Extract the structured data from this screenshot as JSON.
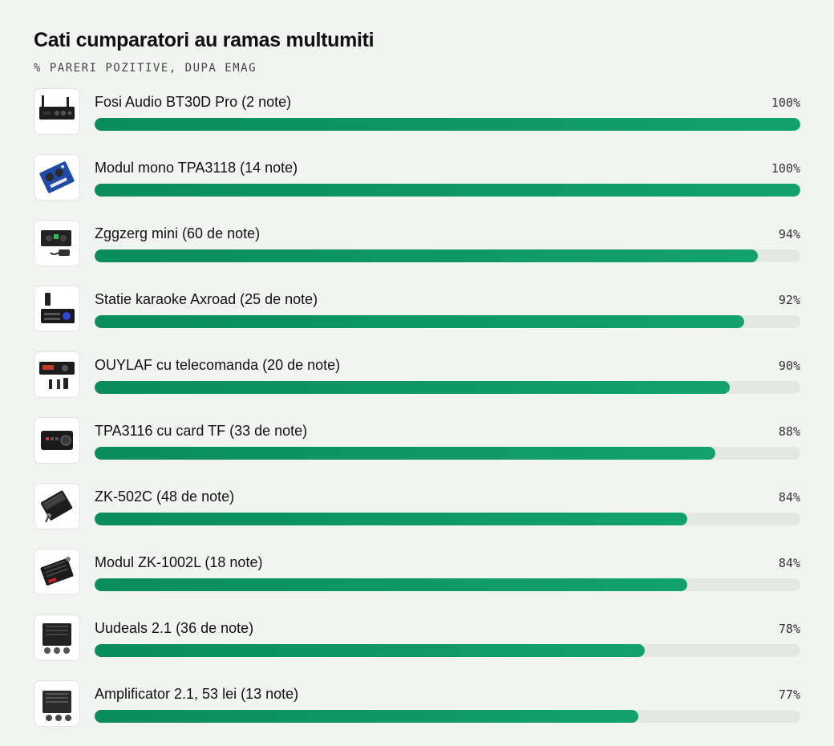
{
  "title": "Cati cumparatori au ramas multumiti",
  "subtitle": "% PARERI POZITIVE, DUPA EMAG",
  "chart_data": {
    "type": "bar",
    "orientation": "horizontal",
    "title": "Cati cumparatori au ramas multumiti",
    "subtitle": "% PARERI POZITIVE, DUPA EMAG",
    "xlim": [
      0,
      100
    ],
    "bar_color": "#0e9563",
    "track_color": "#e4e7e3",
    "value_suffix": "%",
    "items": [
      {
        "label": "Fosi Audio BT30D Pro (2 note)",
        "value": 100,
        "icon": "amplifier-black-box-icon"
      },
      {
        "label": "Modul mono TPA3118 (14 note)",
        "value": 100,
        "icon": "blue-circuit-board-icon"
      },
      {
        "label": "Zggzerg mini (60 de note)",
        "value": 94,
        "icon": "mini-amplifier-icon"
      },
      {
        "label": "Statie karaoke Axroad (25 de note)",
        "value": 92,
        "icon": "karaoke-amplifier-icon"
      },
      {
        "label": "OUYLAF cu telecomanda (20 de note)",
        "value": 90,
        "icon": "amplifier-with-remote-icon"
      },
      {
        "label": "TPA3116 cu card TF (33 de note)",
        "value": 88,
        "icon": "compact-amplifier-icon"
      },
      {
        "label": "ZK-502C (48 de note)",
        "value": 84,
        "icon": "amplifier-module-icon"
      },
      {
        "label": "Modul ZK-1002L (18 note)",
        "value": 84,
        "icon": "amplifier-module-heatsink-icon"
      },
      {
        "label": "Uudeals 2.1 (36 de note)",
        "value": 78,
        "icon": "amplifier-board-knobs-icon"
      },
      {
        "label": "Amplificator 2.1, 53 lei (13 note)",
        "value": 77,
        "icon": "amplifier-board-2-1-icon"
      }
    ]
  }
}
